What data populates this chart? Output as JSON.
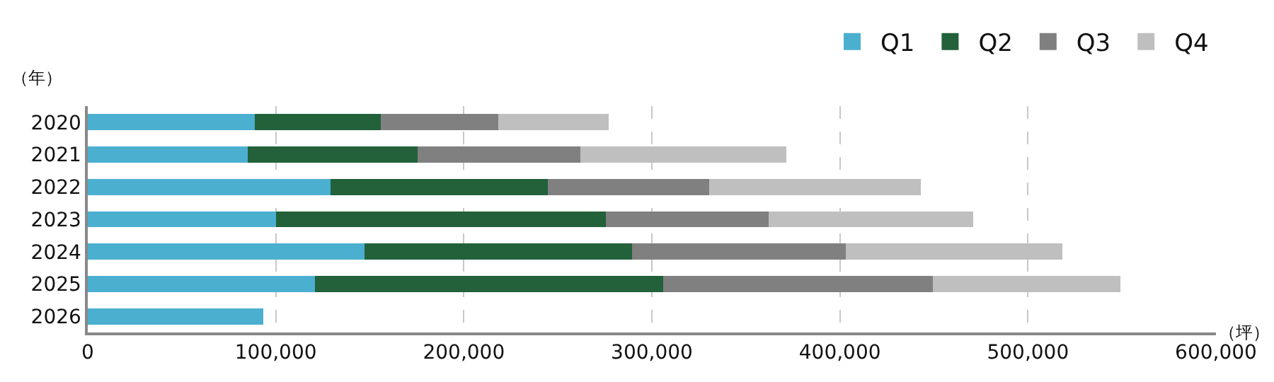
{
  "chart_data": {
    "type": "bar",
    "orientation": "horizontal",
    "stacked": true,
    "xlabel": "（坪）",
    "ylabel": "（年）",
    "categories": [
      "2020",
      "2021",
      "2022",
      "2023",
      "2024",
      "2025",
      "2026"
    ],
    "series": [
      {
        "name": "Q1",
        "color": "#4bafd0",
        "values": [
          89000,
          85000,
          129000,
          100000,
          147000,
          121000,
          93500
        ]
      },
      {
        "name": "Q2",
        "color": "#22613a",
        "values": [
          67000,
          90500,
          115500,
          175500,
          142500,
          185000,
          null
        ]
      },
      {
        "name": "Q3",
        "color": "#808080",
        "values": [
          62500,
          86500,
          86000,
          86500,
          113500,
          143500,
          null
        ]
      },
      {
        "name": "Q4",
        "color": "#bfbfbf",
        "values": [
          58500,
          109500,
          112500,
          109000,
          115500,
          99500,
          null
        ]
      }
    ],
    "xlim": [
      0,
      600000
    ],
    "xticks": [
      {
        "value": 0,
        "label": "0"
      },
      {
        "value": 100000,
        "label": "100,000"
      },
      {
        "value": 200000,
        "label": "200,000"
      },
      {
        "value": 300000,
        "label": "300,000"
      },
      {
        "value": 400000,
        "label": "400,000"
      },
      {
        "value": 500000,
        "label": "500,000"
      },
      {
        "value": 600000,
        "label": "600,000"
      }
    ],
    "grid": "x",
    "legend": "top right"
  }
}
